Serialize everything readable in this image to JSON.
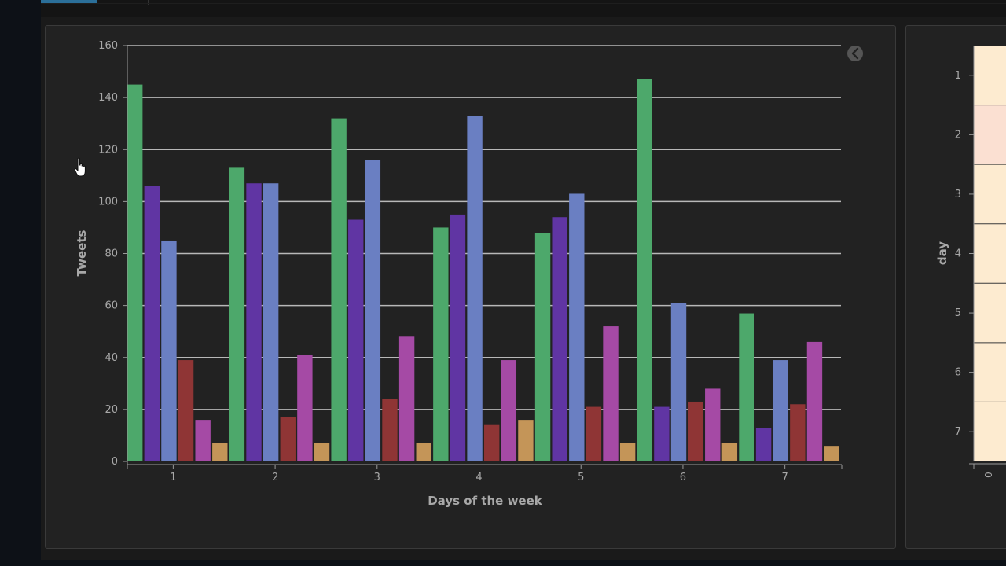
{
  "chart_data": {
    "type": "bar",
    "title": "",
    "xlabel": "Days of the week",
    "ylabel": "Tweets",
    "categories": [
      "1",
      "2",
      "3",
      "4",
      "5",
      "6",
      "7"
    ],
    "ylim": [
      0,
      160
    ],
    "yticks": [
      0,
      20,
      40,
      60,
      80,
      100,
      120,
      140,
      160
    ],
    "grid": true,
    "series": [
      {
        "color": "#4da86b",
        "values": [
          145,
          113,
          132,
          90,
          88,
          147,
          57
        ]
      },
      {
        "color": "#6035a3",
        "values": [
          106,
          107,
          93,
          95,
          94,
          21,
          13
        ]
      },
      {
        "color": "#6a7fc2",
        "values": [
          85,
          107,
          116,
          133,
          103,
          61,
          39
        ]
      },
      {
        "color": "#8f3535",
        "values": [
          39,
          17,
          24,
          14,
          21,
          23,
          22
        ]
      },
      {
        "color": "#a54aa5",
        "values": [
          16,
          41,
          48,
          39,
          52,
          28,
          46
        ]
      },
      {
        "color": "#c49558",
        "values": [
          7,
          7,
          7,
          16,
          7,
          7,
          6
        ]
      }
    ]
  },
  "side_chart": {
    "ylabel": "day",
    "yticks": [
      "1",
      "2",
      "3",
      "4",
      "5",
      "6",
      "7"
    ],
    "xtick": "0",
    "cell_colors": [
      "#fdebd0",
      "#fbe0d2",
      "#fdebd0",
      "#fdebd0",
      "#fdebd0",
      "#fdebd0",
      "#fdebd0"
    ]
  }
}
